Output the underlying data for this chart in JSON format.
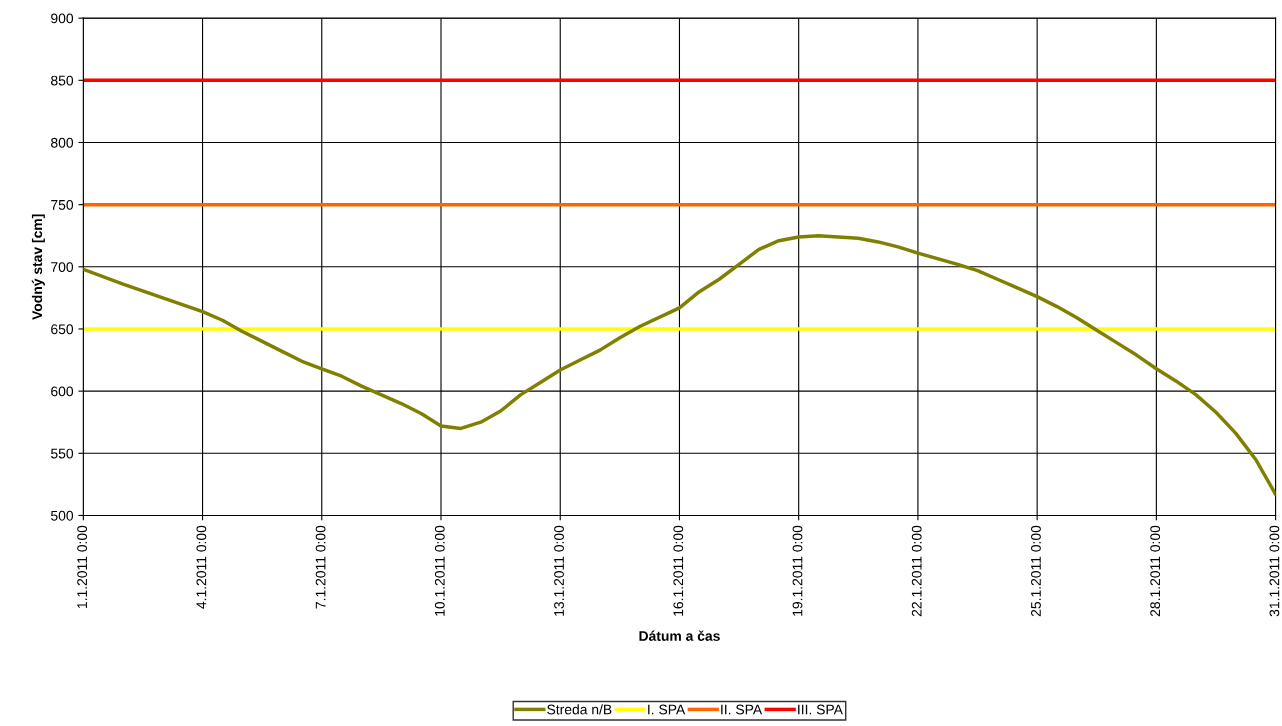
{
  "chart_data": {
    "type": "line",
    "xlabel": "Dátum a čas",
    "ylabel": "Vodný stav [cm]",
    "x": [
      "2011-01-01T00:00",
      "2011-01-02T00:00",
      "2011-01-03T00:00",
      "2011-01-04T00:00",
      "2011-01-04T12:00",
      "2011-01-05T00:00",
      "2011-01-06T00:00",
      "2011-01-06T12:00",
      "2011-01-07T00:00",
      "2011-01-07T12:00",
      "2011-01-08T00:00",
      "2011-01-09T00:00",
      "2011-01-09T12:00",
      "2011-01-10T00:00",
      "2011-01-10T12:00",
      "2011-01-11T00:00",
      "2011-01-11T12:00",
      "2011-01-12T00:00",
      "2011-01-12T12:00",
      "2011-01-13T00:00",
      "2011-01-13T12:00",
      "2011-01-14T00:00",
      "2011-01-14T12:00",
      "2011-01-15T00:00",
      "2011-01-16T00:00",
      "2011-01-16T12:00",
      "2011-01-17T00:00",
      "2011-01-17T12:00",
      "2011-01-18T00:00",
      "2011-01-18T12:00",
      "2011-01-19T00:00",
      "2011-01-19T12:00",
      "2011-01-20T00:00",
      "2011-01-20T12:00",
      "2011-01-21T00:00",
      "2011-01-21T12:00",
      "2011-01-22T00:00",
      "2011-01-23T00:00",
      "2011-01-23T12:00",
      "2011-01-24T00:00",
      "2011-01-24T12:00",
      "2011-01-25T00:00",
      "2011-01-25T12:00",
      "2011-01-26T00:00",
      "2011-01-26T12:00",
      "2011-01-27T00:00",
      "2011-01-27T12:00",
      "2011-01-28T00:00",
      "2011-01-28T12:00",
      "2011-01-29T00:00",
      "2011-01-29T12:00",
      "2011-01-30T00:00",
      "2011-01-30T12:00",
      "2011-01-31T00:00"
    ],
    "series": [
      {
        "name": "Streda n/B",
        "color": "#808000",
        "values": [
          698,
          686,
          675,
          664,
          657,
          648,
          632,
          624,
          618,
          612,
          604,
          590,
          582,
          572,
          570,
          575,
          584,
          597,
          607,
          617,
          625,
          633,
          643,
          652,
          667,
          680,
          690,
          702,
          714,
          721,
          724,
          725,
          724,
          723,
          720,
          716,
          711,
          702,
          697,
          690,
          683,
          676,
          668,
          659,
          649,
          639,
          629,
          618,
          608,
          597,
          583,
          566,
          545,
          517
        ]
      }
    ],
    "ref_lines": [
      {
        "axis": "y",
        "value": 650,
        "label": "I. SPA",
        "color": "#ffff00"
      },
      {
        "axis": "y",
        "value": 750,
        "label": "II. SPA",
        "color": "#ff6600"
      },
      {
        "axis": "y",
        "value": 850,
        "label": "III. SPA",
        "color": "#ff0000"
      }
    ],
    "xlim": [
      "2011-01-01T00:00",
      "2011-01-31T00:00"
    ],
    "xticks": [
      {
        "value": "2011-01-01T00:00",
        "label": "1.1.2011 0:00"
      },
      {
        "value": "2011-01-04T00:00",
        "label": "4.1.2011 0:00"
      },
      {
        "value": "2011-01-07T00:00",
        "label": "7.1.2011 0:00"
      },
      {
        "value": "2011-01-10T00:00",
        "label": "10.1.2011 0:00"
      },
      {
        "value": "2011-01-13T00:00",
        "label": "13.1.2011 0:00"
      },
      {
        "value": "2011-01-16T00:00",
        "label": "16.1.2011 0:00"
      },
      {
        "value": "2011-01-19T00:00",
        "label": "19.1.2011 0:00"
      },
      {
        "value": "2011-01-22T00:00",
        "label": "22.1.2011 0:00"
      },
      {
        "value": "2011-01-25T00:00",
        "label": "25.1.2011 0:00"
      },
      {
        "value": "2011-01-28T00:00",
        "label": "28.1.2011 0:00"
      },
      {
        "value": "2011-01-31T00:00",
        "label": "31.1.2011 0:00"
      }
    ],
    "ylim": [
      500,
      900
    ],
    "yticks": [
      500,
      550,
      600,
      650,
      700,
      750,
      800,
      850,
      900
    ],
    "grid": true,
    "legend": "bottom",
    "marker": "none",
    "line_style": "solid"
  }
}
